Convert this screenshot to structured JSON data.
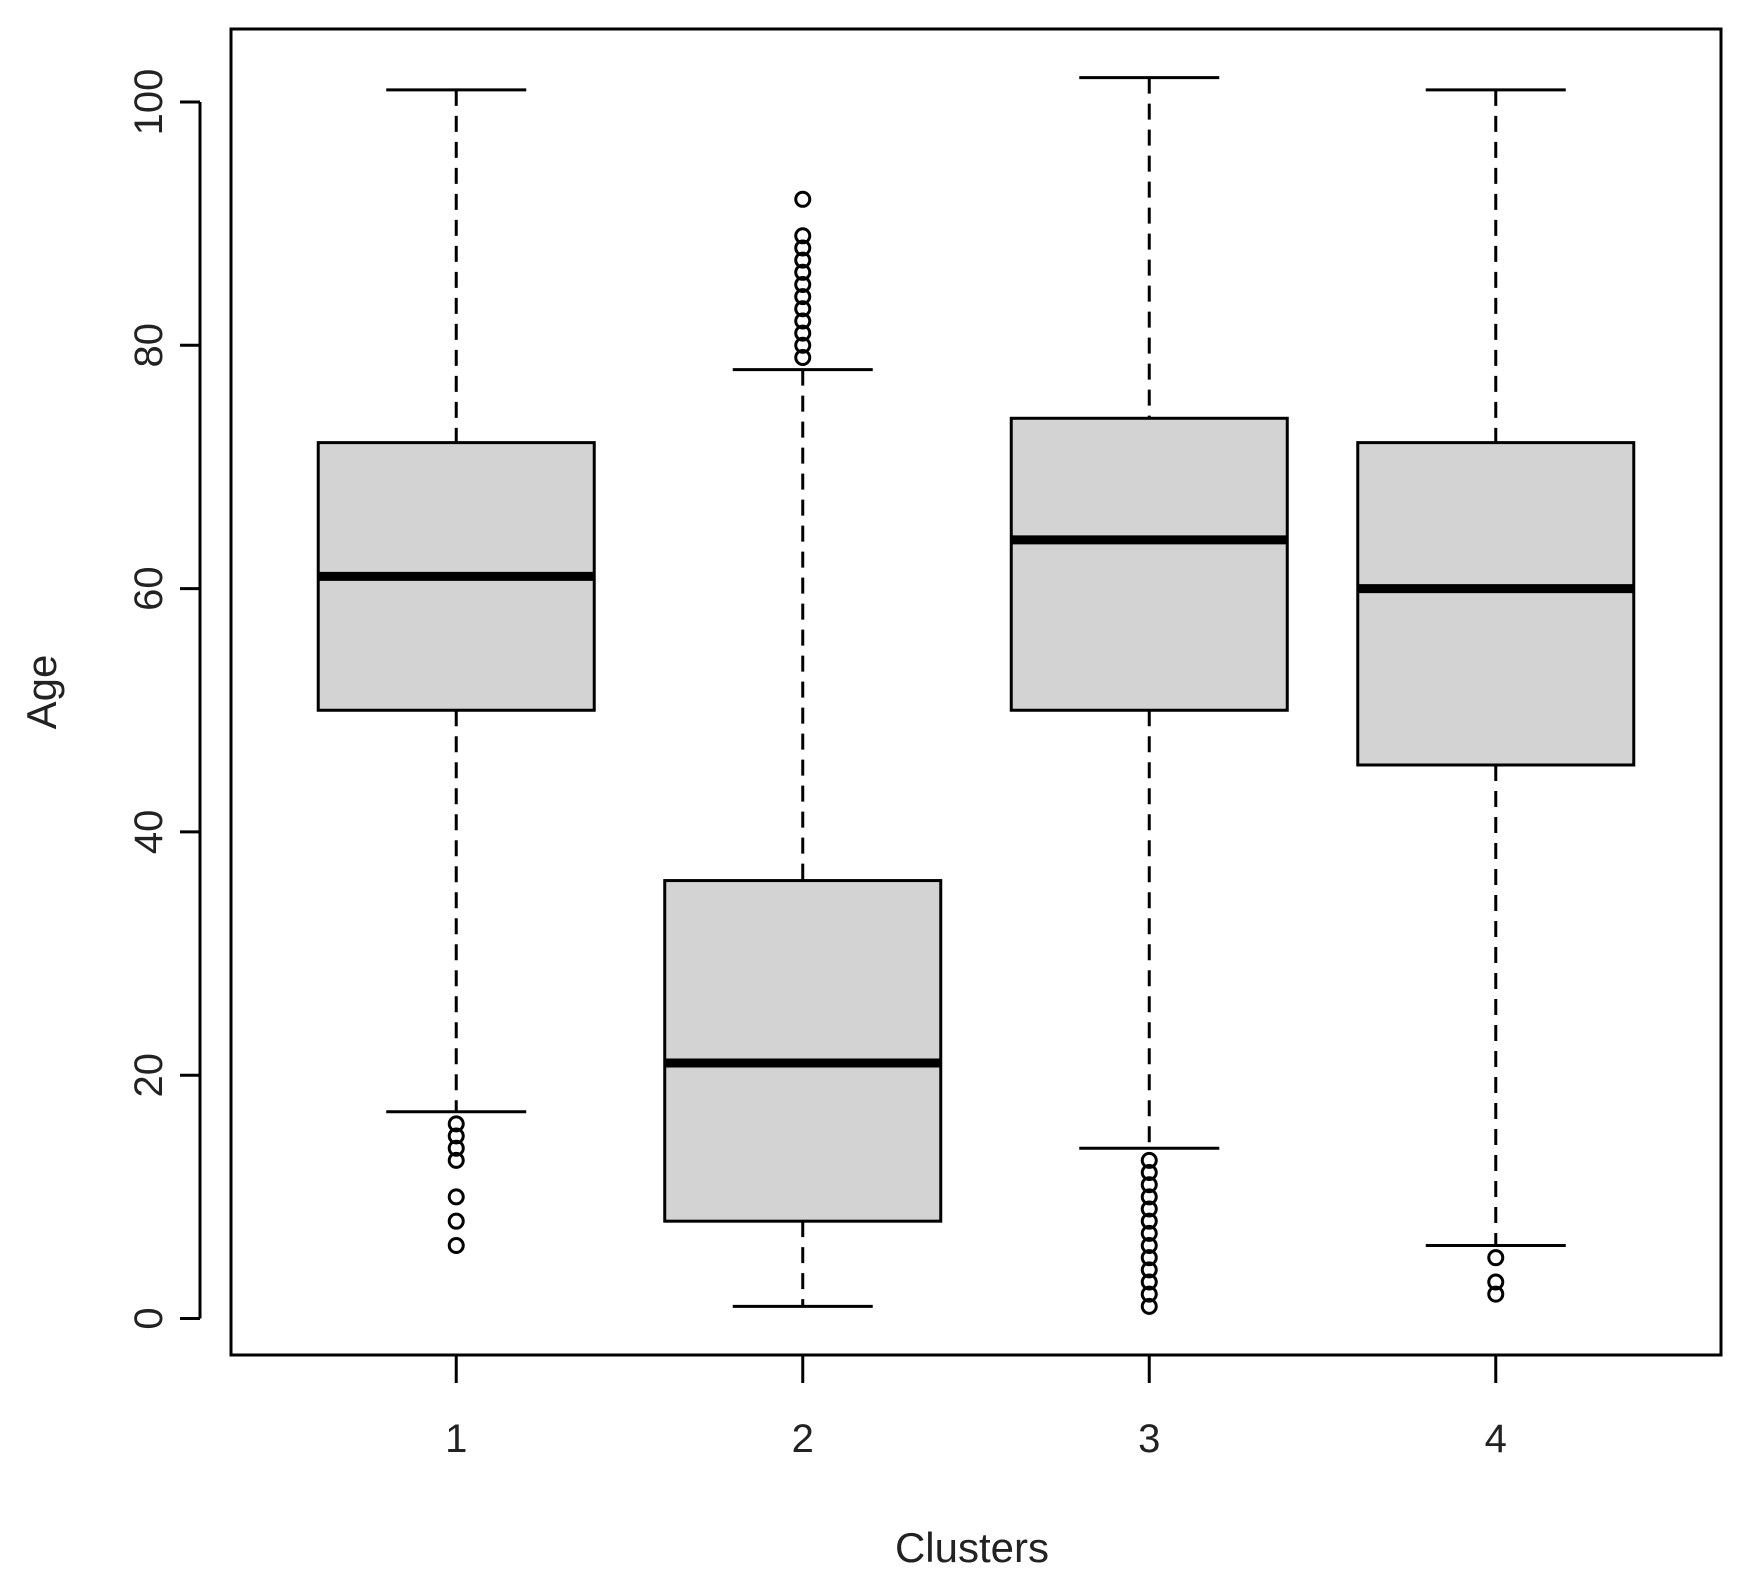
{
  "chart_data": {
    "type": "boxplot",
    "title": "",
    "xlabel": "Clusters",
    "ylabel": "Age",
    "ylim": [
      -3,
      106
    ],
    "y_ticks": [
      0,
      20,
      40,
      60,
      80,
      100
    ],
    "grid": false,
    "legend": "none",
    "categories": [
      "1",
      "2",
      "3",
      "4"
    ],
    "boxes": [
      {
        "category": "1",
        "whisker_low": 17,
        "q1": 50,
        "median": 61,
        "q3": 72,
        "whisker_high": 101,
        "outliers": [
          6,
          8,
          10,
          13,
          14,
          15,
          16
        ]
      },
      {
        "category": "2",
        "whisker_low": 1,
        "q1": 8,
        "median": 21,
        "q3": 36,
        "whisker_high": 78,
        "outliers": [
          79,
          80,
          81,
          82,
          83,
          84,
          85,
          86,
          87,
          88,
          89,
          92
        ]
      },
      {
        "category": "3",
        "whisker_low": 14,
        "q1": 50,
        "median": 64,
        "q3": 74,
        "whisker_high": 102,
        "outliers": [
          1,
          2,
          3,
          4,
          5,
          6,
          7,
          8,
          9,
          10,
          11,
          12,
          13
        ]
      },
      {
        "category": "4",
        "whisker_low": 6,
        "q1": 45.5,
        "median": 60,
        "q3": 72,
        "whisker_high": 101,
        "outliers": [
          2,
          3,
          5
        ]
      }
    ],
    "colors": {
      "box_fill": "#d3d3d3",
      "stroke": "#000000"
    }
  }
}
